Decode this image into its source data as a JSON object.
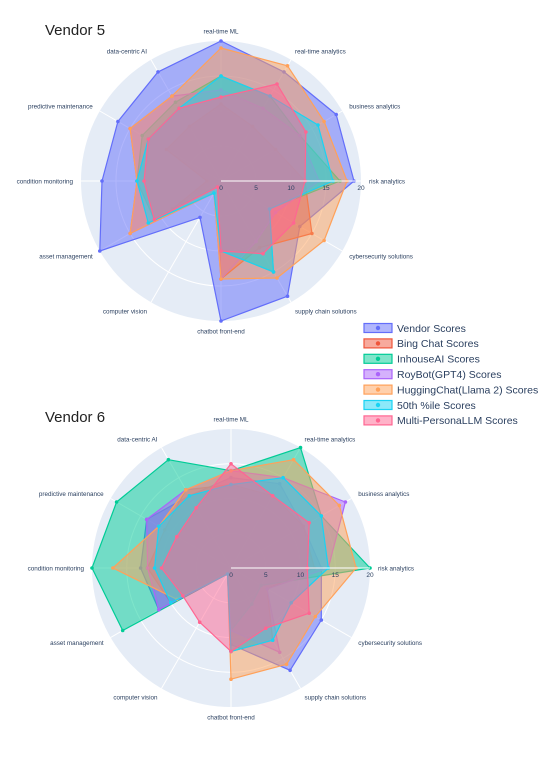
{
  "chart_data": [
    {
      "type": "radar",
      "title": "Vendor  5",
      "axes": [
        "real-time ML",
        "real-time analytics",
        "business analytics",
        "risk analytics",
        "cybersecurity solutions",
        "supply chain solutions",
        "chatbot front-end",
        "computer vision",
        "asset management",
        "condition monitoring",
        "predictive maintenance",
        "data-centric AI"
      ],
      "radial_ticks": [
        "0",
        "5",
        "10",
        "15",
        "20"
      ],
      "range": [
        0,
        20
      ],
      "series": [
        {
          "name": "Vendor Scores",
          "values": [
            20,
            18,
            19,
            19,
            13,
            19,
            20,
            6,
            20,
            17,
            17,
            18
          ]
        },
        {
          "name": "Bing Chat Scores",
          "values": [
            11,
            9,
            9,
            12,
            15,
            11,
            14,
            1,
            8,
            2,
            9,
            9
          ]
        },
        {
          "name": "InhouseAI Scores",
          "values": [
            15,
            14,
            13,
            17,
            8,
            15,
            10,
            1,
            11,
            12,
            13,
            13
          ]
        },
        {
          "name": "RoyBot(GPT4) Scores",
          "values": [
            13,
            12,
            13,
            14,
            9,
            10,
            14,
            2,
            15,
            12,
            15,
            14
          ]
        },
        {
          "name": "HuggingChat(Llama 2) Scores",
          "values": [
            19,
            19,
            17,
            18,
            17,
            16,
            14,
            2,
            15,
            12,
            15,
            14
          ]
        },
        {
          "name": "50th %ile Scores",
          "values": [
            15,
            14,
            16,
            16,
            8,
            15,
            10,
            2,
            12,
            12,
            12,
            12
          ]
        },
        {
          "name": "Multi-PersonaLLM Scores",
          "values": [
            12,
            16,
            14,
            12,
            12,
            12,
            10,
            1,
            11,
            11,
            12,
            12
          ]
        }
      ],
      "legend": "right"
    },
    {
      "type": "radar",
      "title": "Vendor  6",
      "axes": [
        "real-time ML",
        "real-time analytics",
        "business analytics",
        "risk analytics",
        "cybersecurity solutions",
        "supply chain solutions",
        "chatbot front-end",
        "computer vision",
        "asset management",
        "condition monitoring",
        "predictive maintenance",
        "data-centric AI"
      ],
      "radial_ticks": [
        "0",
        "5",
        "10",
        "15",
        "20"
      ],
      "range": [
        0,
        20
      ],
      "series": [
        {
          "name": "Vendor Scores",
          "values": [
            13,
            14,
            12,
            13,
            15,
            17,
            11,
            1,
            12,
            13,
            14,
            12
          ]
        },
        {
          "name": "Bing Chat Scores",
          "values": [
            12,
            12,
            12,
            12,
            6,
            12,
            12,
            1,
            10,
            12,
            11,
            13
          ]
        },
        {
          "name": "InhouseAI Scores",
          "values": [
            14,
            20,
            15,
            20,
            5,
            6,
            9,
            1,
            18,
            20,
            19,
            18
          ]
        },
        {
          "name": "RoyBot(GPT4) Scores",
          "values": [
            14,
            15,
            19,
            14,
            6,
            14,
            9,
            1,
            12,
            12,
            14,
            13
          ]
        },
        {
          "name": "HuggingChat(Llama 2) Scores",
          "values": [
            14,
            18,
            18,
            18,
            14,
            16,
            16,
            1,
            9,
            17,
            12,
            13
          ]
        },
        {
          "name": "50th %ile Scores",
          "values": [
            12,
            15,
            15,
            14,
            10,
            12,
            12,
            1,
            10,
            11,
            12,
            12
          ]
        },
        {
          "name": "Multi-PersonaLLM Scores",
          "values": [
            15,
            12,
            13,
            11,
            13,
            10,
            12,
            9,
            8,
            10,
            9,
            10
          ]
        }
      ],
      "legend": "right"
    }
  ],
  "colors": {
    "Vendor Scores": "#636efa",
    "Bing Chat Scores": "#ef553b",
    "InhouseAI Scores": "#00cc96",
    "RoyBot(GPT4) Scores": "#ab63fa",
    "HuggingChat(Llama 2) Scores": "#ffa15a",
    "50th %ile Scores": "#19d3f3",
    "Multi-PersonaLLM Scores": "#ff6692",
    "polar_bg": "#e5ecf6",
    "grid": "#ffffff"
  }
}
